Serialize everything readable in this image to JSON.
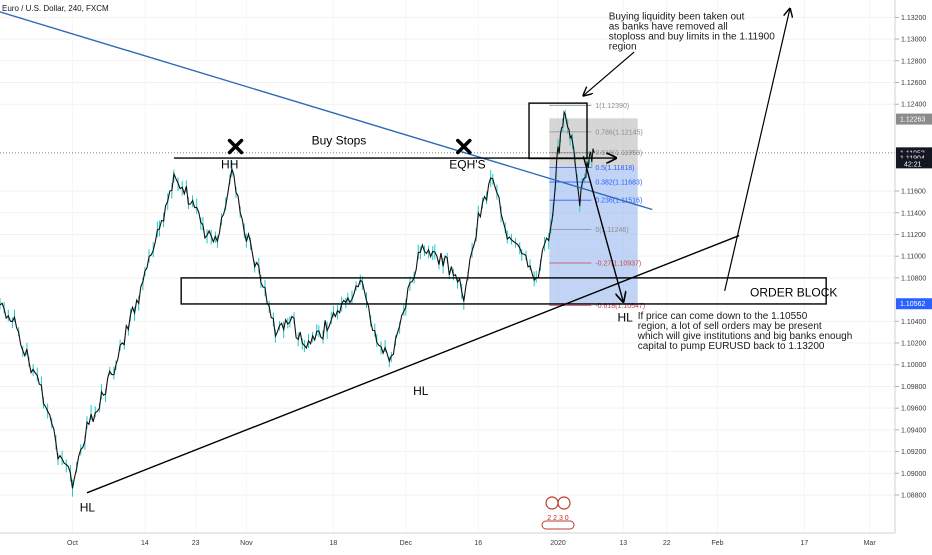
{
  "symbol_title": "Euro / U.S. Dollar, 240, FXCM",
  "countdown": "42:21",
  "colors": {
    "candle": "#1ec8c8",
    "trendline": "#2f6cb8",
    "tag_dark": "#131722",
    "tag_blue": "#2962ff",
    "tag_gray": "#8c8c8c",
    "fib_box_upper": "#b4b4b4",
    "fib_box_lower": "#9ab8ee",
    "fib_level_gray": "#8c8c8c",
    "fib_level_blue": "#2962ff",
    "fib_level_red": "#c44",
    "watermark": "#c0392b"
  },
  "annotations": {
    "buy_stops": "Buy Stops",
    "hh": "HH",
    "eqhs": "EQH'S",
    "hl_left": "HL",
    "hl_mid": "HL",
    "hl_right": "HL",
    "order_block": "ORDER BLOCK",
    "liquidity_note": [
      "Buying liquidity been taken out",
      "as banks have removed all",
      "stoploss and buy limits in the 1.11900",
      "region"
    ],
    "price_note": [
      "If price can come down to the 1.10550",
      "region, a lot of sell orders may be present",
      "which will give institutions and big banks enough",
      "capital to pump EURUSD back to 1.13200"
    ]
  },
  "watermark": {
    "text": "2 2 3 0"
  },
  "chart_data": {
    "type": "line",
    "title": "Euro / U.S. Dollar, 240, FXCM",
    "xlabel": "",
    "ylabel": "",
    "x_tick_labels": [
      {
        "label": "Oct",
        "x": 0
      },
      {
        "label": "14",
        "x": 10
      },
      {
        "label": "23",
        "x": 17
      },
      {
        "label": "Nov",
        "x": 24
      },
      {
        "label": "18",
        "x": 36
      },
      {
        "label": "Dec",
        "x": 46
      },
      {
        "label": "16",
        "x": 56
      },
      {
        "label": "2020",
        "x": 67
      },
      {
        "label": "13",
        "x": 76
      },
      {
        "label": "22",
        "x": 82
      },
      {
        "label": "Feb",
        "x": 89
      },
      {
        "label": "17",
        "x": 101
      },
      {
        "label": "Mar",
        "x": 110
      }
    ],
    "xlim": [
      -10,
      113.5
    ],
    "ylim": [
      1.0845,
      1.1336
    ],
    "y_ticks": [
      1.088,
      1.09,
      1.092,
      1.094,
      1.096,
      1.098,
      1.1,
      1.102,
      1.104,
      1.108,
      1.11,
      1.112,
      1.114,
      1.116,
      1.124,
      1.126,
      1.128,
      1.13,
      1.132
    ],
    "y_tick_labels": [
      "1.08800",
      "1.09000",
      "1.09200",
      "1.09400",
      "1.09600",
      "1.09800",
      "1.10000",
      "1.10200",
      "1.10400",
      "1.10800",
      "1.11000",
      "1.11200",
      "1.11400",
      "1.11600",
      "1.12400",
      "1.12600",
      "1.12800",
      "1.13000",
      "1.13200"
    ],
    "price_tags": [
      {
        "label": "1.12263",
        "value": 1.12263,
        "style": "gray"
      },
      {
        "label": "1.11952",
        "value": 1.11952,
        "style": "dark"
      },
      {
        "label": "1.11904",
        "value": 1.11904,
        "style": "dark"
      },
      {
        "label": "1.10562",
        "value": 1.10562,
        "style": "blue"
      }
    ],
    "series": [
      {
        "x": [
          -10,
          -8,
          -6,
          -4,
          -2,
          0,
          2,
          4,
          6,
          8,
          10,
          12,
          14,
          16,
          18,
          20,
          22,
          24,
          26,
          28,
          30,
          32,
          34,
          36,
          38,
          40,
          42,
          44,
          46,
          48,
          50,
          52,
          54,
          56,
          58,
          60,
          62,
          64,
          66,
          67,
          68,
          69,
          70,
          71,
          72
        ],
        "values": [
          1.1055,
          1.104,
          1.1005,
          1.097,
          1.092,
          1.0893,
          1.094,
          1.097,
          1.1,
          1.104,
          1.108,
          1.1125,
          1.1175,
          1.1155,
          1.1125,
          1.111,
          1.1175,
          1.112,
          1.108,
          1.103,
          1.1045,
          1.1015,
          1.1025,
          1.1045,
          1.1055,
          1.1075,
          1.102,
          1.1005,
          1.106,
          1.1105,
          1.11,
          1.109,
          1.1065,
          1.1135,
          1.1175,
          1.112,
          1.11,
          1.108,
          1.1125,
          1.1195,
          1.1235,
          1.12,
          1.115,
          1.1185,
          1.1195
        ]
      }
    ],
    "fibonacci": [
      {
        "label": "1(1.12390)",
        "value": 1.1239
      },
      {
        "label": "0.786(1.12145)",
        "value": 1.12145
      },
      {
        "label": "0.618(1.11953)",
        "value": 1.11953
      },
      {
        "label": "0.5(1.11818)",
        "value": 1.11818
      },
      {
        "label": "0.382(1.11683)",
        "value": 1.11683
      },
      {
        "label": "0.236(1.11516)",
        "value": 1.11516
      },
      {
        "label": "0(1.11246)",
        "value": 1.11246
      },
      {
        "label": "-0.27(1.10937)",
        "value": 1.10937
      },
      {
        "label": "-0.618(1.10547)",
        "value": 1.10547
      }
    ],
    "levels": {
      "buy_stops_line": 1.11904,
      "current_price_line": 1.11952,
      "order_block_top": 1.108,
      "order_block_bottom": 1.1056,
      "liquidity_box_top": 1.1241,
      "liquidity_box_bottom": 1.119,
      "target_price": 1.132
    },
    "trendlines": [
      {
        "from_x": -10,
        "from_y": 1.1325,
        "to_x": 80,
        "to_y": 1.1143
      },
      {
        "from_x": 2,
        "from_y": 1.0882,
        "to_x": 92,
        "to_y": 1.1119
      }
    ]
  }
}
